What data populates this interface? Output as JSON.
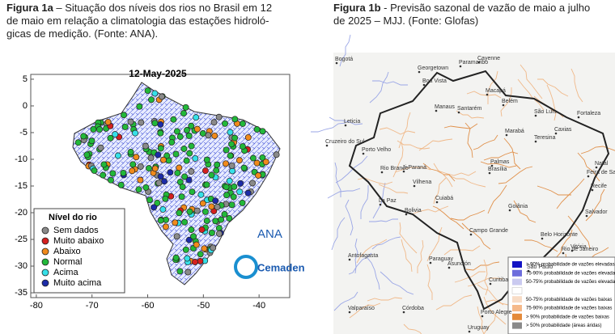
{
  "figure_a": {
    "label": "Figura 1a",
    "caption_lines": [
      " – Situação dos níveis dos rios no Brasil em 12",
      "de maio em relação a climatologia das estações hidroló-",
      "gicas de medição. (Fonte: ANA)."
    ],
    "map_title": "12-May-2025",
    "xlim": [
      -81,
      -34.5
    ],
    "ylim": [
      -35.9,
      5.9
    ],
    "xticks": [
      -80,
      -70,
      -60,
      -50,
      -40
    ],
    "yticks": [
      5,
      0,
      -5,
      -10,
      -15,
      -20,
      -25,
      -30,
      -35
    ],
    "legend": {
      "title": "Nível do rio",
      "items": [
        {
          "name": "Sem dados",
          "color": "#8a8a8a"
        },
        {
          "name": "Muito abaixo",
          "color": "#d42020"
        },
        {
          "name": "Abaixo",
          "color": "#f08a1c"
        },
        {
          "name": "Normal",
          "color": "#22b83a"
        },
        {
          "name": "Acima",
          "color": "#36e0e8"
        },
        {
          "name": "Muito acima",
          "color": "#1c2ca8"
        }
      ]
    },
    "logos": {
      "ana": "ANA",
      "cemaden": "Cemaden"
    }
  },
  "figure_b": {
    "label": "Figura 1b",
    "caption_lines": [
      " - Previsão sazonal de vazão de maio a julho",
      "de 2025 – MJJ. (Fonte: Glofas)"
    ],
    "cities": [
      "Bogotá",
      "Georgetown",
      "Paramaribo",
      "Cayenne",
      "Boa Vista",
      "Macapá",
      "Belém",
      "São Luís",
      "Fortaleza",
      "Manaus",
      "Santarém",
      "Marabá",
      "Teresina",
      "Caxias",
      "Natal",
      "Leticia",
      "Recife",
      "Porto Velho",
      "Cruzeiro do Sul",
      "Rio Branco",
      "Palmas",
      "Salvador",
      "Ji-Paraná",
      "Vilhena",
      "Brasília",
      "Feira de Santana",
      "La Paz",
      "Bolivia",
      "Cuiabá",
      "Goiânia",
      "Campo Grande",
      "Belo Horizonte",
      "Vitória",
      "Paraguay",
      "São Paulo",
      "Rio de Janeiro",
      "Asunción",
      "Antofagasta",
      "Curitiba",
      "Córdoba",
      "Porto Alegre",
      "Uruguay",
      "Valparaíso"
    ],
    "legend": [
      {
        "name": "> 90% probabilidade de vazões elevadas",
        "color": "#1414c4"
      },
      {
        "name": "75-90% probabilidade de vazões elevadas",
        "color": "#6c6cdc"
      },
      {
        "name": "50-75% probabilidade de vazões elevadas",
        "color": "#cacaf0"
      },
      {
        "name": "50-75% probabilidade de vazões baixas",
        "color": "#f8dcc6"
      },
      {
        "name": "75-90% probabilidade de vazões baixas",
        "color": "#f5b98a"
      },
      {
        "name": "> 90% probabilidade de vazões baixas",
        "color": "#e48a3a"
      },
      {
        "name": "> 50% probabilidade (áreas áridas)",
        "color": "#8a8a8a"
      }
    ]
  }
}
